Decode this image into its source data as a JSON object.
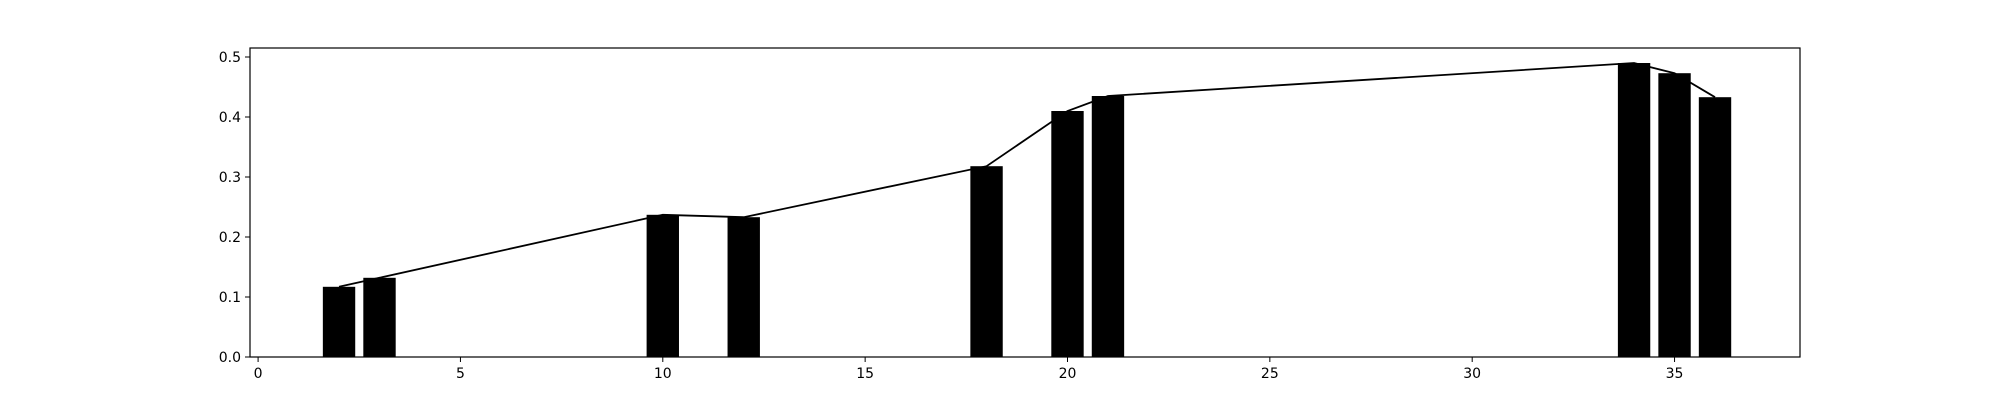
{
  "chart_data": {
    "type": "bar",
    "x": [
      2,
      3,
      10,
      12,
      18,
      20,
      21,
      34,
      35,
      36
    ],
    "values": [
      0.117,
      0.132,
      0.237,
      0.233,
      0.318,
      0.41,
      0.435,
      0.49,
      0.473,
      0.433
    ],
    "bar_width": 0.8,
    "line": {
      "x": [
        2,
        3,
        10,
        12,
        18,
        20,
        21,
        34,
        35,
        36
      ],
      "y": [
        0.117,
        0.132,
        0.237,
        0.233,
        0.318,
        0.41,
        0.435,
        0.49,
        0.473,
        0.433
      ]
    },
    "xlim": [
      -0.2,
      38.1
    ],
    "ylim": [
      0,
      0.515
    ],
    "xticks": [
      0,
      5,
      10,
      15,
      20,
      25,
      30,
      35
    ],
    "yticks": [
      0.0,
      0.1,
      0.2,
      0.3,
      0.4,
      0.5
    ],
    "xtick_labels": [
      "0",
      "5",
      "10",
      "15",
      "20",
      "25",
      "30",
      "35"
    ],
    "ytick_labels": [
      "0.0",
      "0.1",
      "0.2",
      "0.3",
      "0.4",
      "0.5"
    ],
    "title": "",
    "xlabel": "",
    "ylabel": "",
    "grid": false,
    "bar_color": "#000000",
    "line_color": "#000000"
  }
}
